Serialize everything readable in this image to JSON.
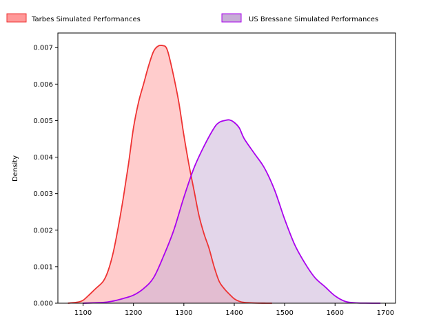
{
  "chart_data": {
    "type": "area",
    "title": "",
    "xlabel": "",
    "ylabel": "Density",
    "xlim": [
      1050,
      1720
    ],
    "ylim": [
      0,
      0.0074
    ],
    "x_ticks": [
      1100,
      1200,
      1300,
      1400,
      1500,
      1600,
      1700
    ],
    "x_tick_labels": [
      "1100",
      "1200",
      "1300",
      "1400",
      "1500",
      "1600",
      "1700"
    ],
    "y_ticks": [
      0,
      0.001,
      0.002,
      0.003,
      0.004,
      0.005,
      0.006,
      0.007
    ],
    "y_tick_labels": [
      "0.000",
      "0.001",
      "0.002",
      "0.003",
      "0.004",
      "0.005",
      "0.006",
      "0.007"
    ],
    "grid": false,
    "legend_position": "top",
    "series": [
      {
        "name": "Tarbes Simulated Performances",
        "line_color": "#ee3333",
        "fill_color": "#ff9999",
        "x": [
          1070,
          1090,
          1100,
          1110,
          1125,
          1140,
          1150,
          1160,
          1170,
          1180,
          1190,
          1200,
          1210,
          1220,
          1230,
          1240,
          1250,
          1260,
          1265,
          1270,
          1280,
          1290,
          1300,
          1310,
          1320,
          1330,
          1340,
          1350,
          1360,
          1370,
          1380,
          1390,
          1400,
          1410,
          1420,
          1440,
          1460,
          1475
        ],
        "y": [
          0.0,
          3e-05,
          8e-05,
          0.0002,
          0.0004,
          0.0006,
          0.0009,
          0.0014,
          0.0021,
          0.0029,
          0.0038,
          0.0048,
          0.0055,
          0.006,
          0.0065,
          0.0069,
          0.00705,
          0.00705,
          0.007,
          0.0068,
          0.0062,
          0.0055,
          0.0046,
          0.0038,
          0.0031,
          0.0024,
          0.0019,
          0.0015,
          0.001,
          0.0006,
          0.0004,
          0.00025,
          0.00012,
          5e-05,
          2e-05,
          5e-06,
          1e-06,
          0.0
        ]
      },
      {
        "name": "US Bressane Simulated Performances",
        "line_color": "#aa00ee",
        "fill_color": "#c7aed6",
        "x": [
          1100,
          1140,
          1160,
          1180,
          1200,
          1220,
          1240,
          1260,
          1280,
          1300,
          1320,
          1340,
          1360,
          1370,
          1380,
          1390,
          1400,
          1410,
          1420,
          1440,
          1460,
          1480,
          1500,
          1520,
          1540,
          1560,
          1580,
          1600,
          1620,
          1640,
          1660,
          1690
        ],
        "y": [
          0.0,
          2e-05,
          6e-05,
          0.00013,
          0.00022,
          0.0004,
          0.0007,
          0.0013,
          0.002,
          0.0029,
          0.0037,
          0.0043,
          0.0048,
          0.00495,
          0.005,
          0.00502,
          0.00495,
          0.0048,
          0.0045,
          0.0041,
          0.0037,
          0.0031,
          0.0023,
          0.0016,
          0.0011,
          0.0007,
          0.00045,
          0.0002,
          5e-05,
          1e-05,
          2e-06,
          0.0
        ]
      }
    ]
  }
}
